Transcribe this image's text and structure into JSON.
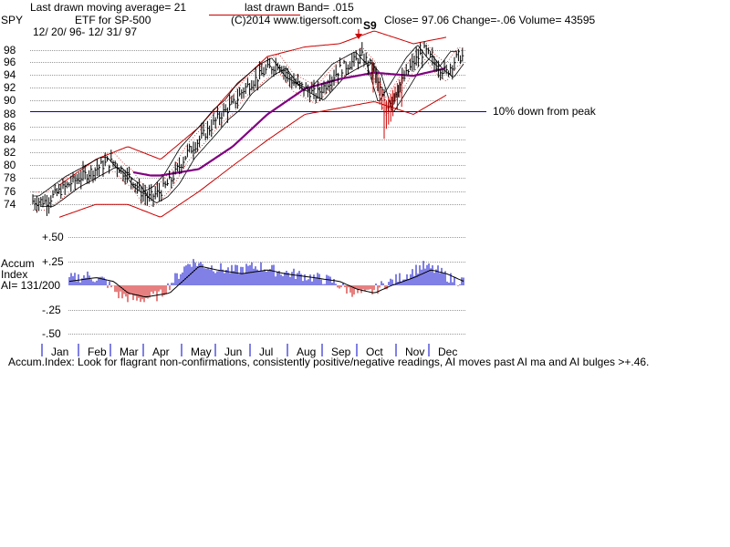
{
  "header": {
    "ticker": "SPY",
    "ma_text": "Last drawn moving average= 21",
    "band_text": "last drawn Band= .015",
    "subtitle": "ETF for SP-500",
    "date_range": "12/ 20/ 96- 12/ 31/ 97",
    "copyright": "(C)2014 www.tigersoft.com",
    "close_text": "Close=  97.06  Change=-.06 Volume= 43595"
  },
  "annotations": {
    "peak_text": "10% down from peak",
    "signal_label": "S9"
  },
  "accum": {
    "title_line1": "Accum",
    "title_line2": "Index",
    "ai_text": "AI= 131/200",
    "yticks": [
      "+.50",
      "+.25",
      "-.25",
      "-.50"
    ],
    "footer": "Accum.Index: Look for flagrant non-confirmations, consistently positive/negative readings, AI moves past AI ma and AI bulges >+.46."
  },
  "colors": {
    "price_bars": "#000000",
    "ma_line": "#800080",
    "band_lines": "#cc0000",
    "peak_line": "#0000cc",
    "accum_positive": "#0000cc",
    "accum_negative": "#cc0000",
    "signal_arrow": "#cc0000"
  },
  "chart_data": {
    "type": "line",
    "title": "SPY ETF for SP-500",
    "x_range": [
      "12/20/96",
      "12/31/97"
    ],
    "months": [
      "Jan",
      "Feb",
      "Mar",
      "Apr",
      "May",
      "Jun",
      "Jul",
      "Aug",
      "Sep",
      "Oct",
      "Nov",
      "Dec"
    ],
    "ylim": [
      73,
      100
    ],
    "yticks": [
      98,
      96,
      94,
      92,
      90,
      88,
      86,
      84,
      82,
      80,
      78,
      76,
      74
    ],
    "peak_reference_level": 88.4,
    "series": [
      {
        "name": "Close",
        "points": [
          [
            "Jan",
            74.5
          ],
          [
            "Jan",
            75.5
          ],
          [
            "Jan",
            76.5
          ],
          [
            "Jan",
            77.5
          ],
          [
            "Feb",
            78.5
          ],
          [
            "Feb",
            79.5
          ],
          [
            "Feb",
            80.5
          ],
          [
            "Mar",
            80.5
          ],
          [
            "Mar",
            79
          ],
          [
            "Mar",
            78
          ],
          [
            "Mar",
            76
          ],
          [
            "Apr",
            75
          ],
          [
            "Apr",
            76
          ],
          [
            "Apr",
            78
          ],
          [
            "May",
            82
          ],
          [
            "May",
            84
          ],
          [
            "May",
            86
          ],
          [
            "Jun",
            88
          ],
          [
            "Jun",
            89.5
          ],
          [
            "Jun",
            92
          ],
          [
            "Jul",
            93.5
          ],
          [
            "Jul",
            95
          ],
          [
            "Jul",
            96
          ],
          [
            "Aug",
            93
          ],
          [
            "Aug",
            92
          ],
          [
            "Aug",
            91
          ],
          [
            "Sep",
            93
          ],
          [
            "Sep",
            95
          ],
          [
            "Sep",
            96
          ],
          [
            "Oct",
            97
          ],
          [
            "Oct",
            95
          ],
          [
            "Oct",
            89
          ],
          [
            "Nov",
            93
          ],
          [
            "Nov",
            96
          ],
          [
            "Nov",
            98
          ],
          [
            "Dec",
            96
          ],
          [
            "Dec",
            94.5
          ],
          [
            "Dec",
            97
          ]
        ]
      },
      {
        "name": "21-day MA",
        "points": [
          [
            "Mar",
            79
          ],
          [
            "Apr",
            78.5
          ],
          [
            "May",
            79.5
          ],
          [
            "Jun",
            83
          ],
          [
            "Jul",
            88
          ],
          [
            "Aug",
            92
          ],
          [
            "Sep",
            93.5
          ],
          [
            "Oct",
            94.5
          ],
          [
            "Nov",
            94
          ],
          [
            "Dec",
            95.2
          ]
        ]
      },
      {
        "name": "Upper band",
        "points": [
          [
            "Jan",
            77
          ],
          [
            "Feb",
            81
          ],
          [
            "Mar",
            83
          ],
          [
            "Apr",
            81
          ],
          [
            "May",
            86
          ],
          [
            "Jun",
            92
          ],
          [
            "Jul",
            97
          ],
          [
            "Aug",
            98.5
          ],
          [
            "Sep",
            99
          ],
          [
            "Oct",
            101
          ],
          [
            "Nov",
            99
          ],
          [
            "Dec",
            100
          ]
        ]
      },
      {
        "name": "Lower band",
        "points": [
          [
            "Jan",
            72
          ],
          [
            "Feb",
            74
          ],
          [
            "Mar",
            74
          ],
          [
            "Apr",
            72
          ],
          [
            "May",
            76
          ],
          [
            "Jun",
            80
          ],
          [
            "Jul",
            84
          ],
          [
            "Aug",
            88
          ],
          [
            "Sep",
            89
          ],
          [
            "Oct",
            90
          ],
          [
            "Nov",
            88
          ],
          [
            "Dec",
            91
          ]
        ]
      }
    ],
    "accum_index": {
      "ylim": [
        -0.5,
        0.5
      ],
      "yticks": [
        0.5,
        0.25,
        -0.25,
        -0.5
      ],
      "values": [
        [
          "Jan",
          0.05
        ],
        [
          "Feb",
          0.1
        ],
        [
          "Feb",
          0.05
        ],
        [
          "Mar",
          -0.1
        ],
        [
          "Mar",
          -0.15
        ],
        [
          "Apr",
          -0.1
        ],
        [
          "May",
          0.25
        ],
        [
          "May",
          0.2
        ],
        [
          "Jun",
          0.15
        ],
        [
          "Jul",
          0.2
        ],
        [
          "Jul",
          0.15
        ],
        [
          "Aug",
          0.1
        ],
        [
          "Sep",
          0.05
        ],
        [
          "Sep",
          -0.05
        ],
        [
          "Oct",
          -0.1
        ],
        [
          "Oct",
          0.0
        ],
        [
          "Nov",
          0.1
        ],
        [
          "Nov",
          0.2
        ],
        [
          "Dec",
          0.15
        ],
        [
          "Dec",
          0.05
        ]
      ]
    }
  }
}
